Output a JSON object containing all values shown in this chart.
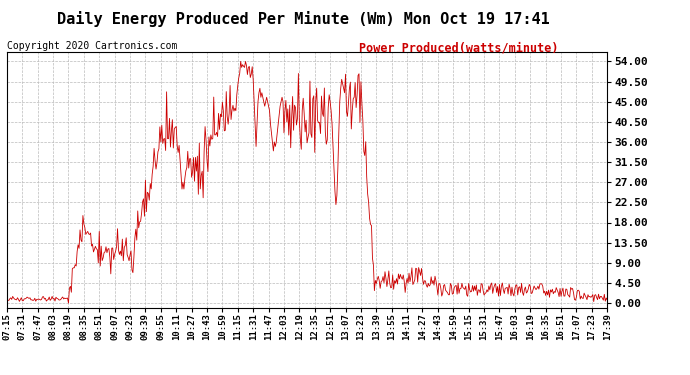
{
  "title": "Daily Energy Produced Per Minute (Wm) Mon Oct 19 17:41",
  "copyright_text": "Copyright 2020 Cartronics.com",
  "legend_text": "Power Produced(watts/minute)",
  "legend_color": "#CC0000",
  "line_color": "#CC0000",
  "background_color": "#FFFFFF",
  "grid_color": "#BBBBBB",
  "yticks": [
    0.0,
    4.5,
    9.0,
    13.5,
    18.0,
    22.5,
    27.0,
    31.5,
    36.0,
    40.5,
    45.0,
    49.5,
    54.0
  ],
  "ylim": [
    -1.0,
    56.0
  ],
  "x_labels": [
    "07:15",
    "07:31",
    "07:47",
    "08:03",
    "08:19",
    "08:35",
    "08:51",
    "09:07",
    "09:23",
    "09:39",
    "09:55",
    "10:11",
    "10:27",
    "10:43",
    "10:59",
    "11:15",
    "11:31",
    "11:47",
    "12:03",
    "12:19",
    "12:35",
    "12:51",
    "13:07",
    "13:23",
    "13:39",
    "13:55",
    "14:11",
    "14:27",
    "14:43",
    "14:59",
    "15:15",
    "15:31",
    "15:47",
    "16:03",
    "16:19",
    "16:35",
    "16:51",
    "17:07",
    "17:23",
    "17:39"
  ],
  "title_fontsize": 11,
  "copyright_fontsize": 7,
  "legend_fontsize": 8.5,
  "tick_fontsize": 6.5,
  "ytick_fontsize": 8
}
